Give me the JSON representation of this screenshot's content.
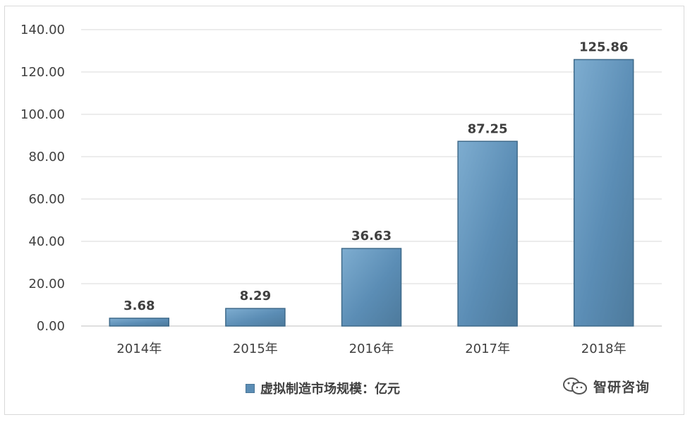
{
  "chart_data": {
    "type": "bar",
    "categories": [
      "2014年",
      "2015年",
      "2016年",
      "2017年",
      "2018年"
    ],
    "series": [
      {
        "name": "虚拟制造市场规模：亿元",
        "values": [
          3.68,
          8.29,
          36.63,
          87.25,
          125.86
        ]
      }
    ],
    "data_labels": [
      "3.68",
      "8.29",
      "36.63",
      "87.25",
      "125.86"
    ],
    "y_ticks": [
      "0.00",
      "20.00",
      "40.00",
      "60.00",
      "80.00",
      "100.00",
      "120.00",
      "140.00"
    ],
    "ylim": [
      0,
      140
    ],
    "grid": true,
    "legend_position": "bottom",
    "bar_color": "#5b8db5",
    "title": "",
    "xlabel": "",
    "ylabel": ""
  },
  "legend": {
    "label": "虚拟制造市场规模：亿元"
  },
  "watermark": {
    "text": "智研咨询",
    "icon": "wechat-icon"
  }
}
